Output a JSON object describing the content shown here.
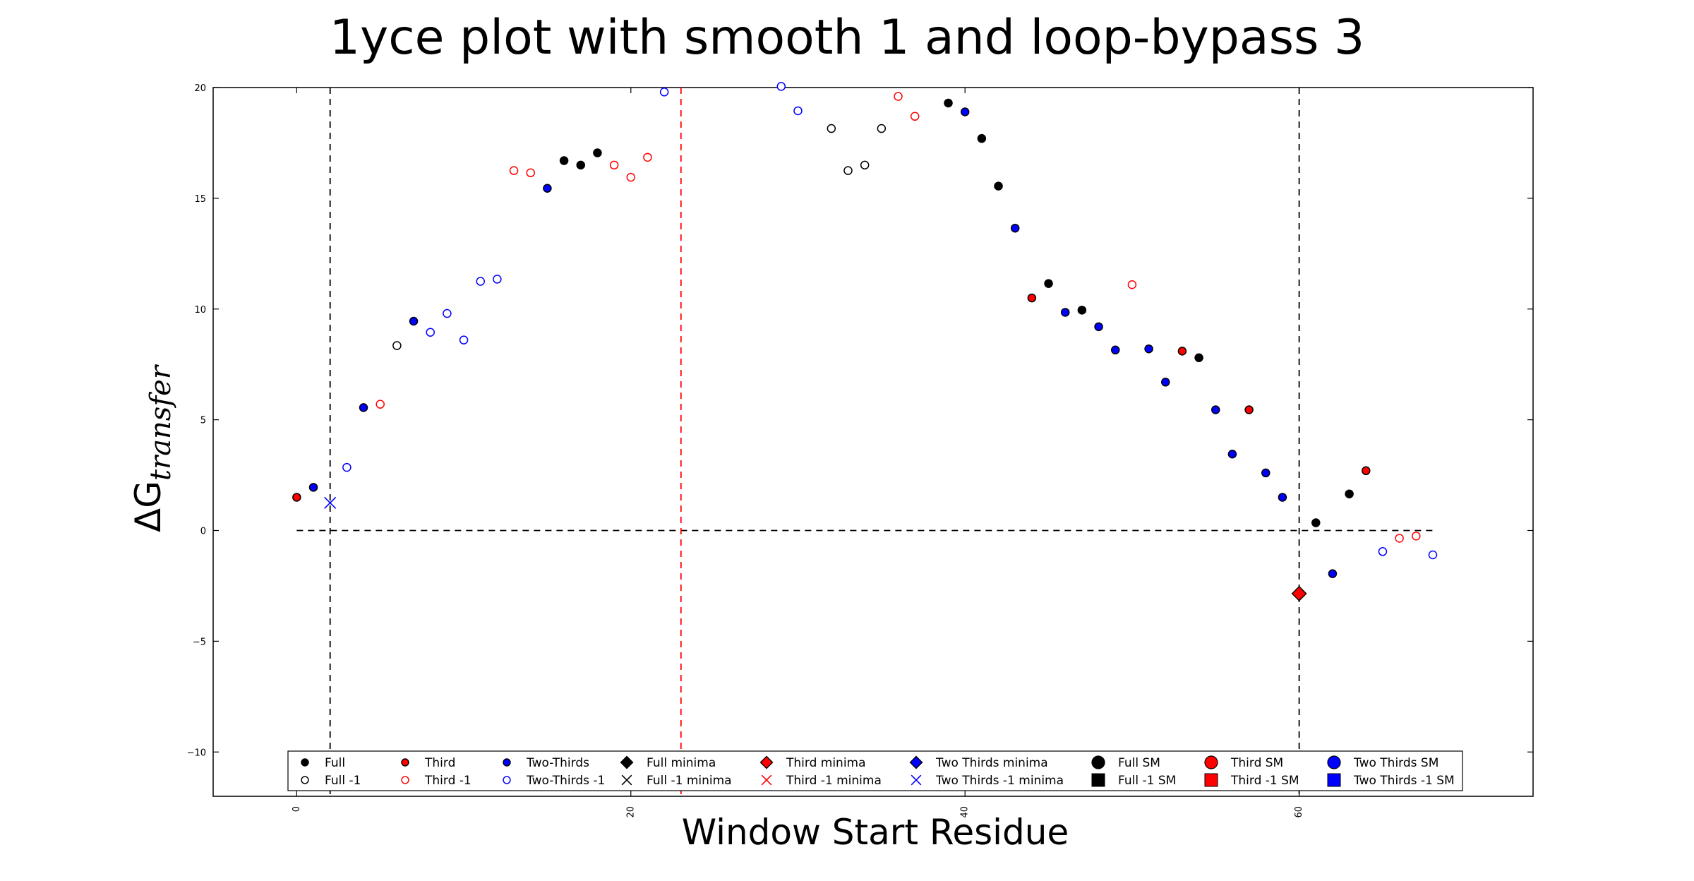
{
  "chart_data": {
    "type": "scatter",
    "title": "1yce plot with smooth 1 and loop-bypass 3",
    "xlabel": "Window Start Residue",
    "ylabel_symbol": "ΔG",
    "ylabel_subscript": "transfer",
    "xlim": [
      -5,
      74
    ],
    "ylim": [
      -12,
      20
    ],
    "xticks": [
      0,
      20,
      40,
      60
    ],
    "yticks": [
      -10,
      -5,
      0,
      5,
      10,
      15,
      20
    ],
    "ytick_labels": [
      "−10",
      "−5",
      "0",
      "5",
      "10",
      "15",
      "20"
    ],
    "grid": false,
    "legend_position": "bottom-center",
    "colors": {
      "Full": "#000000",
      "Third": "#ff0000",
      "Two-Thirds": "#0000ff"
    },
    "hlines": [
      {
        "y": 0,
        "x_from": 0,
        "x_to": 68,
        "color": "#000000",
        "style": "dashed"
      }
    ],
    "vlines": [
      {
        "x": 2,
        "color": "#000000",
        "style": "dashed"
      },
      {
        "x": 23,
        "color": "#ff0000",
        "style": "dashed"
      },
      {
        "x": 60,
        "color": "#000000",
        "style": "dashed"
      }
    ],
    "series": [
      {
        "name": "Full",
        "color": "#000000",
        "fill": true,
        "points": [
          [
            16,
            16.7
          ],
          [
            17,
            16.5
          ],
          [
            18,
            17.05
          ],
          [
            39,
            19.3
          ],
          [
            41,
            17.7
          ],
          [
            42,
            15.55
          ],
          [
            45,
            11.15
          ],
          [
            47,
            9.95
          ],
          [
            54,
            7.8
          ],
          [
            61,
            0.35
          ],
          [
            63,
            1.65
          ]
        ]
      },
      {
        "name": "Full -1",
        "color": "#000000",
        "fill": false,
        "points": [
          [
            6,
            8.35
          ],
          [
            32,
            18.15
          ],
          [
            33,
            16.25
          ],
          [
            34,
            16.5
          ],
          [
            35,
            18.15
          ]
        ]
      },
      {
        "name": "Third",
        "color": "#ff0000",
        "fill": true,
        "points": [
          [
            0,
            1.5
          ],
          [
            44,
            10.5
          ],
          [
            53,
            8.1
          ],
          [
            57,
            5.45
          ],
          [
            64,
            2.7
          ]
        ]
      },
      {
        "name": "Third -1",
        "color": "#ff0000",
        "fill": false,
        "points": [
          [
            5,
            5.7
          ],
          [
            13,
            16.25
          ],
          [
            14,
            16.15
          ],
          [
            19,
            16.5
          ],
          [
            20,
            15.95
          ],
          [
            21,
            16.85
          ],
          [
            36,
            19.6
          ],
          [
            37,
            18.7
          ],
          [
            50,
            11.1
          ],
          [
            66,
            -0.35
          ],
          [
            67,
            -0.25
          ]
        ]
      },
      {
        "name": "Two-Thirds",
        "color": "#0000ff",
        "fill": true,
        "points": [
          [
            1,
            1.95
          ],
          [
            4,
            5.55
          ],
          [
            7,
            9.45
          ],
          [
            15,
            15.45
          ],
          [
            40,
            18.9
          ],
          [
            43,
            13.65
          ],
          [
            46,
            9.85
          ],
          [
            48,
            9.2
          ],
          [
            49,
            8.15
          ],
          [
            51,
            8.2
          ],
          [
            52,
            6.7
          ],
          [
            55,
            5.45
          ],
          [
            56,
            3.45
          ],
          [
            58,
            2.6
          ],
          [
            59,
            1.5
          ],
          [
            62,
            -1.95
          ]
        ]
      },
      {
        "name": "Two-Thirds -1",
        "color": "#0000ff",
        "fill": false,
        "points": [
          [
            3,
            2.85
          ],
          [
            8,
            8.95
          ],
          [
            9,
            9.8
          ],
          [
            10,
            8.6
          ],
          [
            11,
            11.25
          ],
          [
            12,
            11.35
          ],
          [
            22,
            19.8
          ],
          [
            29,
            20.05
          ],
          [
            30,
            18.95
          ],
          [
            65,
            -0.95
          ],
          [
            68,
            -1.1
          ]
        ]
      },
      {
        "name": "Third minima",
        "color": "#ff0000",
        "marker": "diamond",
        "points": [
          [
            60,
            -2.85
          ]
        ]
      },
      {
        "name": "Two Thirds -1 minima",
        "color": "#0000ff",
        "marker": "x",
        "points": [
          [
            2,
            1.25
          ]
        ]
      }
    ],
    "legend": [
      [
        {
          "label": "Full",
          "color": "#000000",
          "marker": "dot",
          "fill": true
        },
        {
          "label": "Full -1",
          "color": "#000000",
          "marker": "dot",
          "fill": false
        }
      ],
      [
        {
          "label": "Third",
          "color": "#ff0000",
          "marker": "dot",
          "fill": true
        },
        {
          "label": "Third -1",
          "color": "#ff0000",
          "marker": "dot",
          "fill": false
        }
      ],
      [
        {
          "label": "Two-Thirds",
          "color": "#0000ff",
          "marker": "dot",
          "fill": true
        },
        {
          "label": "Two-Thirds -1",
          "color": "#0000ff",
          "marker": "dot",
          "fill": false
        }
      ],
      [
        {
          "label": "Full minima",
          "color": "#000000",
          "marker": "diamond"
        },
        {
          "label": "Full -1 minima",
          "color": "#000000",
          "marker": "x"
        }
      ],
      [
        {
          "label": "Third minima",
          "color": "#ff0000",
          "marker": "diamond"
        },
        {
          "label": "Third -1 minima",
          "color": "#ff0000",
          "marker": "x"
        }
      ],
      [
        {
          "label": "Two Thirds minima",
          "color": "#0000ff",
          "marker": "diamond"
        },
        {
          "label": "Two Thirds -1 minima",
          "color": "#0000ff",
          "marker": "x"
        }
      ],
      [
        {
          "label": "Full SM",
          "color": "#000000",
          "marker": "bigcircle"
        },
        {
          "label": "Full -1 SM",
          "color": "#000000",
          "marker": "square"
        }
      ],
      [
        {
          "label": "Third SM",
          "color": "#ff0000",
          "marker": "bigcircle"
        },
        {
          "label": "Third -1 SM",
          "color": "#ff0000",
          "marker": "square"
        }
      ],
      [
        {
          "label": "Two Thirds SM",
          "color": "#0000ff",
          "marker": "bigcircle"
        },
        {
          "label": "Two Thirds -1 SM",
          "color": "#0000ff",
          "marker": "square"
        }
      ]
    ]
  }
}
